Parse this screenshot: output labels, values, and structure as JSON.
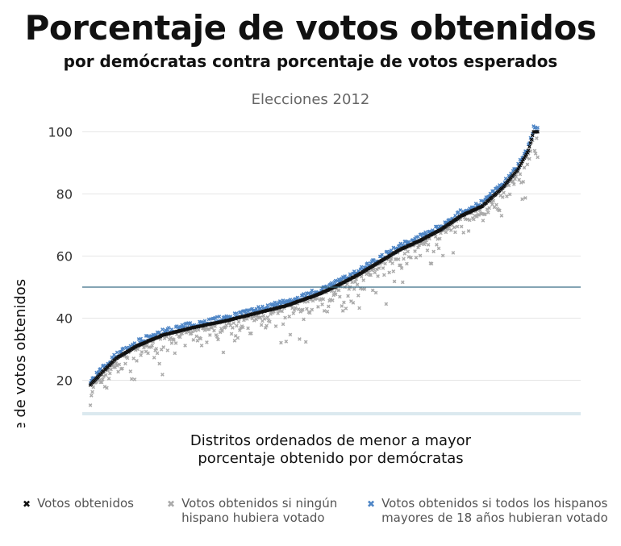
{
  "header": {
    "title": "Porcentaje de votos obtenidos",
    "subtitle": "por demócratas contra porcentaje de votos esperados"
  },
  "chart_data": {
    "type": "scatter",
    "title": "Elecciones 2012",
    "xlabel_line1": "Distritos ordenados de menor a mayor",
    "xlabel_line2": "porcentaje obtenido por demócratas",
    "ylabel": "Porcentaje de votos obtenidos",
    "yticks": [
      20,
      40,
      60,
      80,
      100
    ],
    "ylim": [
      10,
      103
    ],
    "xlim": [
      0,
      435
    ],
    "grid": true,
    "reference_line": 50,
    "legend_placement": "bottom",
    "series": [
      {
        "name": "Votos obtenidos",
        "color": "#111111",
        "marker": "x",
        "curve": [
          [
            0,
            18.5
          ],
          [
            10,
            22
          ],
          [
            25,
            27
          ],
          [
            45,
            31
          ],
          [
            70,
            34.5
          ],
          [
            100,
            37
          ],
          [
            130,
            39
          ],
          [
            160,
            41.5
          ],
          [
            190,
            44
          ],
          [
            220,
            47.5
          ],
          [
            240,
            50.5
          ],
          [
            260,
            54
          ],
          [
            280,
            58
          ],
          [
            300,
            62
          ],
          [
            320,
            65
          ],
          [
            340,
            68.5
          ],
          [
            360,
            73
          ],
          [
            380,
            76
          ],
          [
            400,
            82
          ],
          [
            415,
            88
          ],
          [
            425,
            94
          ],
          [
            430,
            100
          ],
          [
            435,
            100
          ]
        ]
      },
      {
        "name": "Votos obtenidos si ningún hispano hubiera votado",
        "legend_line1": "Votos obtenidos si ningún",
        "legend_line2": "hispano hubiera votado",
        "color": "#aaaaaa",
        "marker": "x",
        "offset_range": [
          -7,
          0.5
        ]
      },
      {
        "name": "Votos obtenidos si todos los hispanos mayores de 18 años hubieran votado",
        "legend_line1": "Votos obtenidos si todos los hispanos",
        "legend_line2": "mayores de 18 años hubieran votado",
        "color": "#4f86c6",
        "marker": "x",
        "offset_range": [
          0,
          2
        ]
      }
    ]
  },
  "colors": {
    "reference_line": "#3b6e87",
    "grid": "#e6e6e6",
    "baseline": "#dbe9ef"
  }
}
